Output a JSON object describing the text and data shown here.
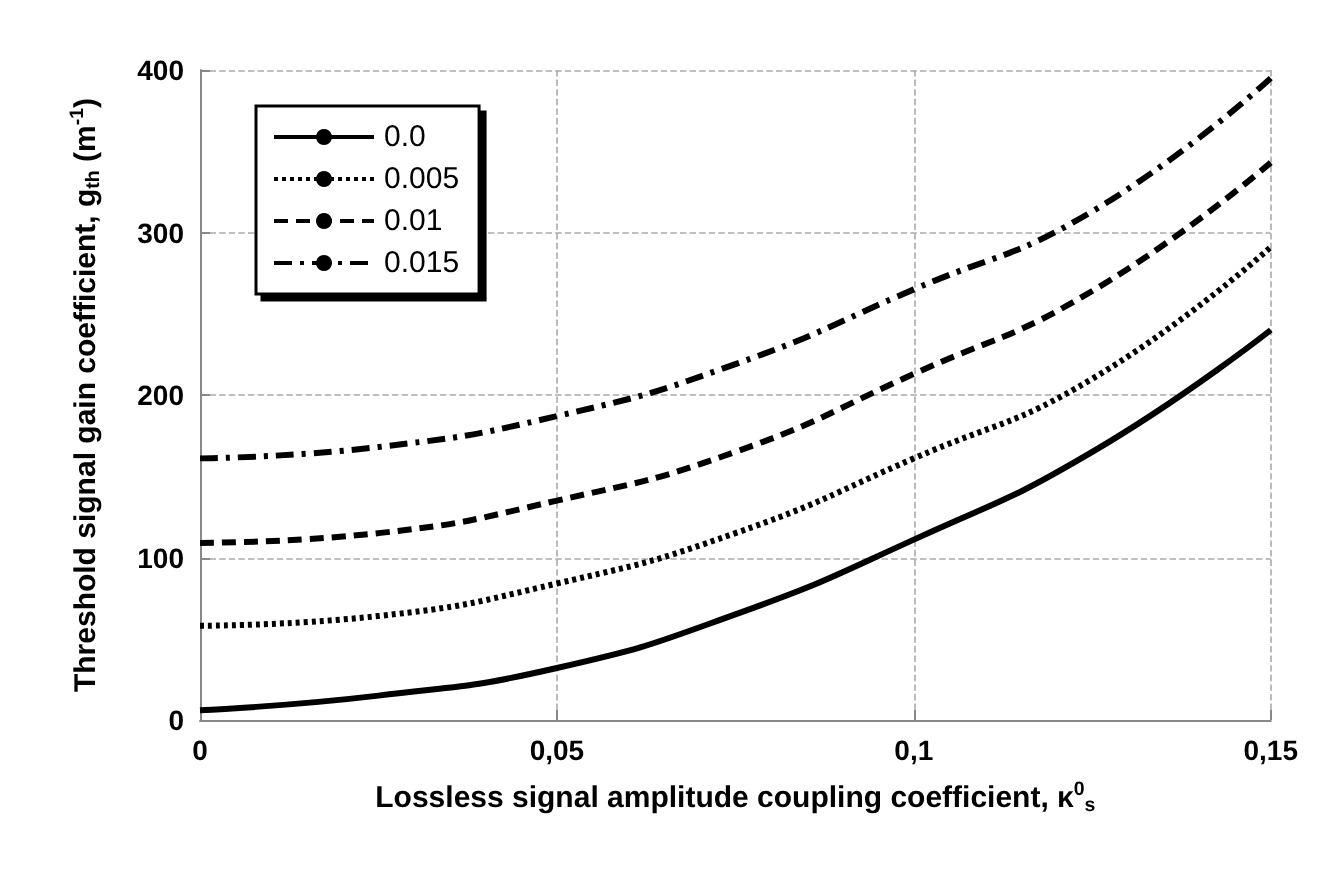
{
  "chart_data": {
    "type": "line",
    "xlabel": "Lossless signal amplitude coupling coefficient, κ$^{0}$$_{s}$",
    "ylabel": "Threshold signal gain coefficient, g$_{th}$ (m$^{-1}$)",
    "x": [
      0,
      0.025,
      0.05,
      0.075,
      0.1,
      0.125,
      0.15
    ],
    "series": [
      {
        "name": "0.0",
        "color": "#000000",
        "line_style": "solid",
        "values": [
          6,
          15,
          32,
          65,
          111,
          165,
          240
        ]
      },
      {
        "name": "0.005",
        "color": "#000000",
        "line_style": "dotted",
        "values": [
          58,
          64,
          84,
          115,
          161,
          210,
          291
        ]
      },
      {
        "name": "0.01",
        "color": "#000000",
        "line_style": "dashed",
        "values": [
          109,
          115,
          135,
          165,
          213,
          264,
          343
        ]
      },
      {
        "name": "0.015",
        "color": "#000000",
        "line_style": "dashdot",
        "values": [
          161,
          168,
          187,
          219,
          265,
          313,
          395
        ]
      }
    ],
    "xlim": [
      0,
      0.15
    ],
    "xticks": [
      0,
      {
        "value": 0.05,
        "label": "0,05"
      },
      {
        "value": 0.1,
        "label": "0,1"
      },
      {
        "value": 0.15,
        "label": "0,15"
      }
    ],
    "ylim": [
      0,
      400
    ],
    "yticks": [
      0,
      100,
      200,
      300,
      400
    ],
    "grid": true,
    "legend": "top left",
    "marker": "none"
  }
}
